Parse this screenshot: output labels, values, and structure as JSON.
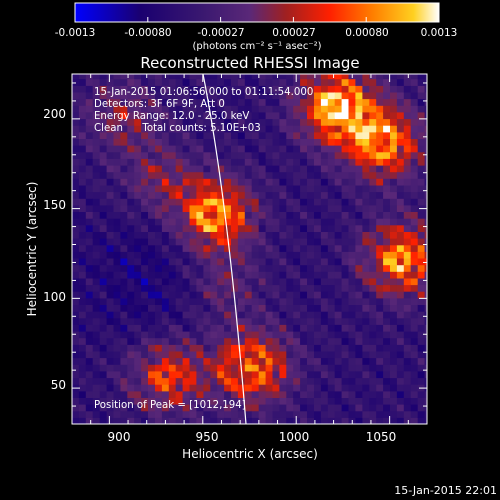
{
  "chart_data": {
    "type": "heatmap",
    "title": "Reconstructed RHESSI Image",
    "xlabel": "Heliocentric X (arcsec)",
    "ylabel": "Heliocentric Y (arcsec)",
    "xlim": [
      880,
      1070
    ],
    "ylim": [
      30,
      225
    ],
    "x_ticks": [
      "900",
      "950",
      "1000",
      "1050"
    ],
    "y_ticks": [
      "50",
      "100",
      "150",
      "200"
    ],
    "colorbar": {
      "range": [
        -0.0013,
        0.0013
      ],
      "tick_labels": [
        "-0.0013",
        "-0.00080",
        "-0.00027",
        "0.00027",
        "0.00080",
        "0.0013"
      ],
      "units_label": "(photons cm⁻² s⁻¹ asec⁻²)",
      "colormap": [
        "#0000ff",
        "#1a0070",
        "#3a1870",
        "#5a2878",
        "#a02020",
        "#ff2000",
        "#ff8000",
        "#ffd020",
        "#ffffff"
      ]
    },
    "annotations": {
      "time_range": "15-Jan-2015 01:06:56.000 to 01:11:54.000",
      "detectors": "Detectors: 3F 6F 9F, Att 0",
      "energy": "Energy Range: 12.0 - 25.0 keV",
      "method": "Clean      Total counts: 5.10E+03",
      "peak": "Position of Peak = [1012,194]"
    },
    "timestamp": "15-Jan-2015 22:01",
    "sources": [
      {
        "x": 1020,
        "y": 205,
        "amp": 1.0
      },
      {
        "x": 1045,
        "y": 185,
        "amp": 0.85
      },
      {
        "x": 955,
        "y": 145,
        "amp": 0.9
      },
      {
        "x": 1055,
        "y": 120,
        "amp": 0.85
      },
      {
        "x": 975,
        "y": 60,
        "amp": 0.8
      },
      {
        "x": 930,
        "y": 55,
        "amp": 0.65
      },
      {
        "x": 960,
        "y": 105,
        "amp": 0.3
      },
      {
        "x": 905,
        "y": 200,
        "amp": 0.4
      },
      {
        "x": 925,
        "y": 165,
        "amp": 0.35
      }
    ]
  }
}
